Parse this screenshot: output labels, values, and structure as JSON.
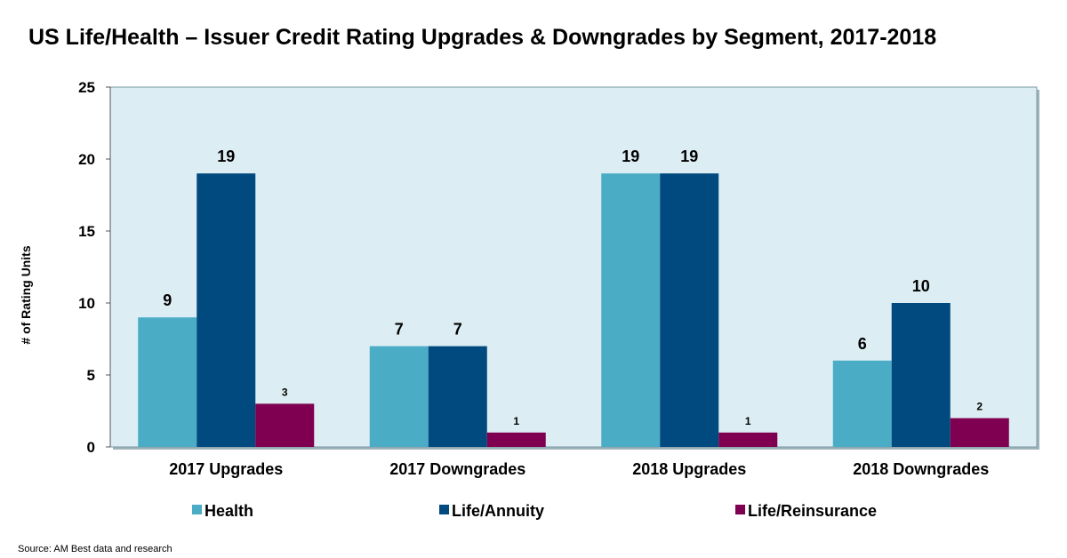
{
  "chart_data": {
    "type": "bar",
    "title": "US Life/Health – Issuer Credit Rating Upgrades & Downgrades by Segment, 2017-2018",
    "ylabel": "# of Rating Units",
    "xlabel": "",
    "ylim": [
      0,
      25
    ],
    "yticks": [
      0,
      5,
      10,
      15,
      20,
      25
    ],
    "categories": [
      "2017 Upgrades",
      "2017 Downgrades",
      "2018 Upgrades",
      "2018 Downgrades"
    ],
    "series": [
      {
        "name": "Health",
        "color": "#4BACC6",
        "values": [
          9,
          7,
          19,
          6
        ]
      },
      {
        "name": "Life/Annuity",
        "color": "#004A7F",
        "values": [
          19,
          7,
          19,
          10
        ]
      },
      {
        "name": "Life/Reinsurance",
        "color": "#7F0050",
        "values": [
          3,
          1,
          1,
          2
        ]
      }
    ],
    "legend_position": "bottom",
    "plot_background": "#DCEEF3"
  },
  "source": "Source: AM Best data and research"
}
